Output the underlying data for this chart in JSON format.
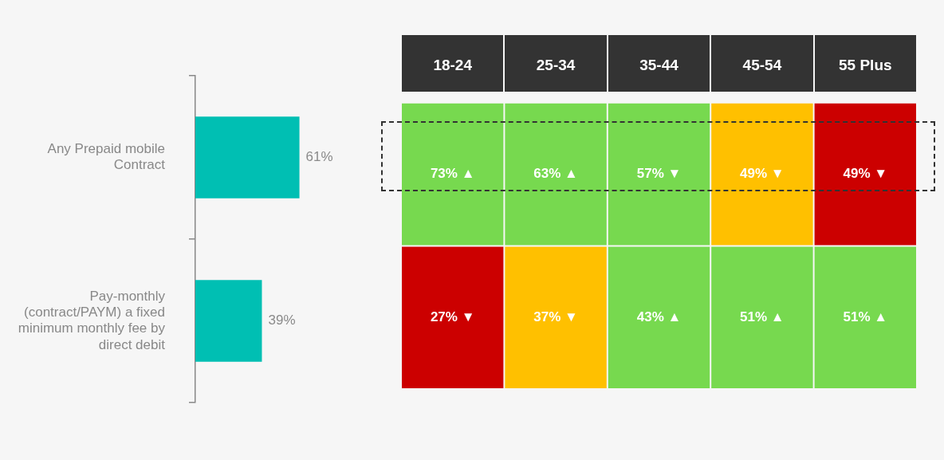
{
  "chart_data": [
    {
      "type": "bar",
      "orientation": "horizontal",
      "categories": [
        "Any Prepaid mobile Contract",
        "Pay-monthly (contract/PAYM) a fixed minimum monthly fee by direct debit"
      ],
      "values": [
        61,
        39
      ],
      "value_labels": [
        "61%",
        "39%"
      ],
      "color": "#00bfb3"
    },
    {
      "type": "heatmap",
      "categories": [
        "18-24",
        "25-34",
        "35-44",
        "45-54",
        "55 Plus"
      ],
      "y_categories": [
        null,
        null
      ],
      "cells": [
        [
          73,
          63,
          57,
          49,
          49
        ],
        [
          27,
          37,
          43,
          51,
          51
        ]
      ],
      "cell_labels": [
        [
          "73% ▲",
          "63% ▲",
          "57% ▼",
          "49% ▼",
          "49% ▼"
        ],
        [
          "27% ▼",
          "37% ▼",
          "43% ▲",
          "51% ▲",
          "51% ▲"
        ]
      ],
      "colors": [
        [
          "#77d94f",
          "#77d94f",
          "#77d94f",
          "#ffc000",
          "#cc0000"
        ],
        [
          "#cc0000",
          "#ffc000",
          "#77d94f",
          "#77d94f",
          "#77d94f"
        ]
      ]
    }
  ]
}
